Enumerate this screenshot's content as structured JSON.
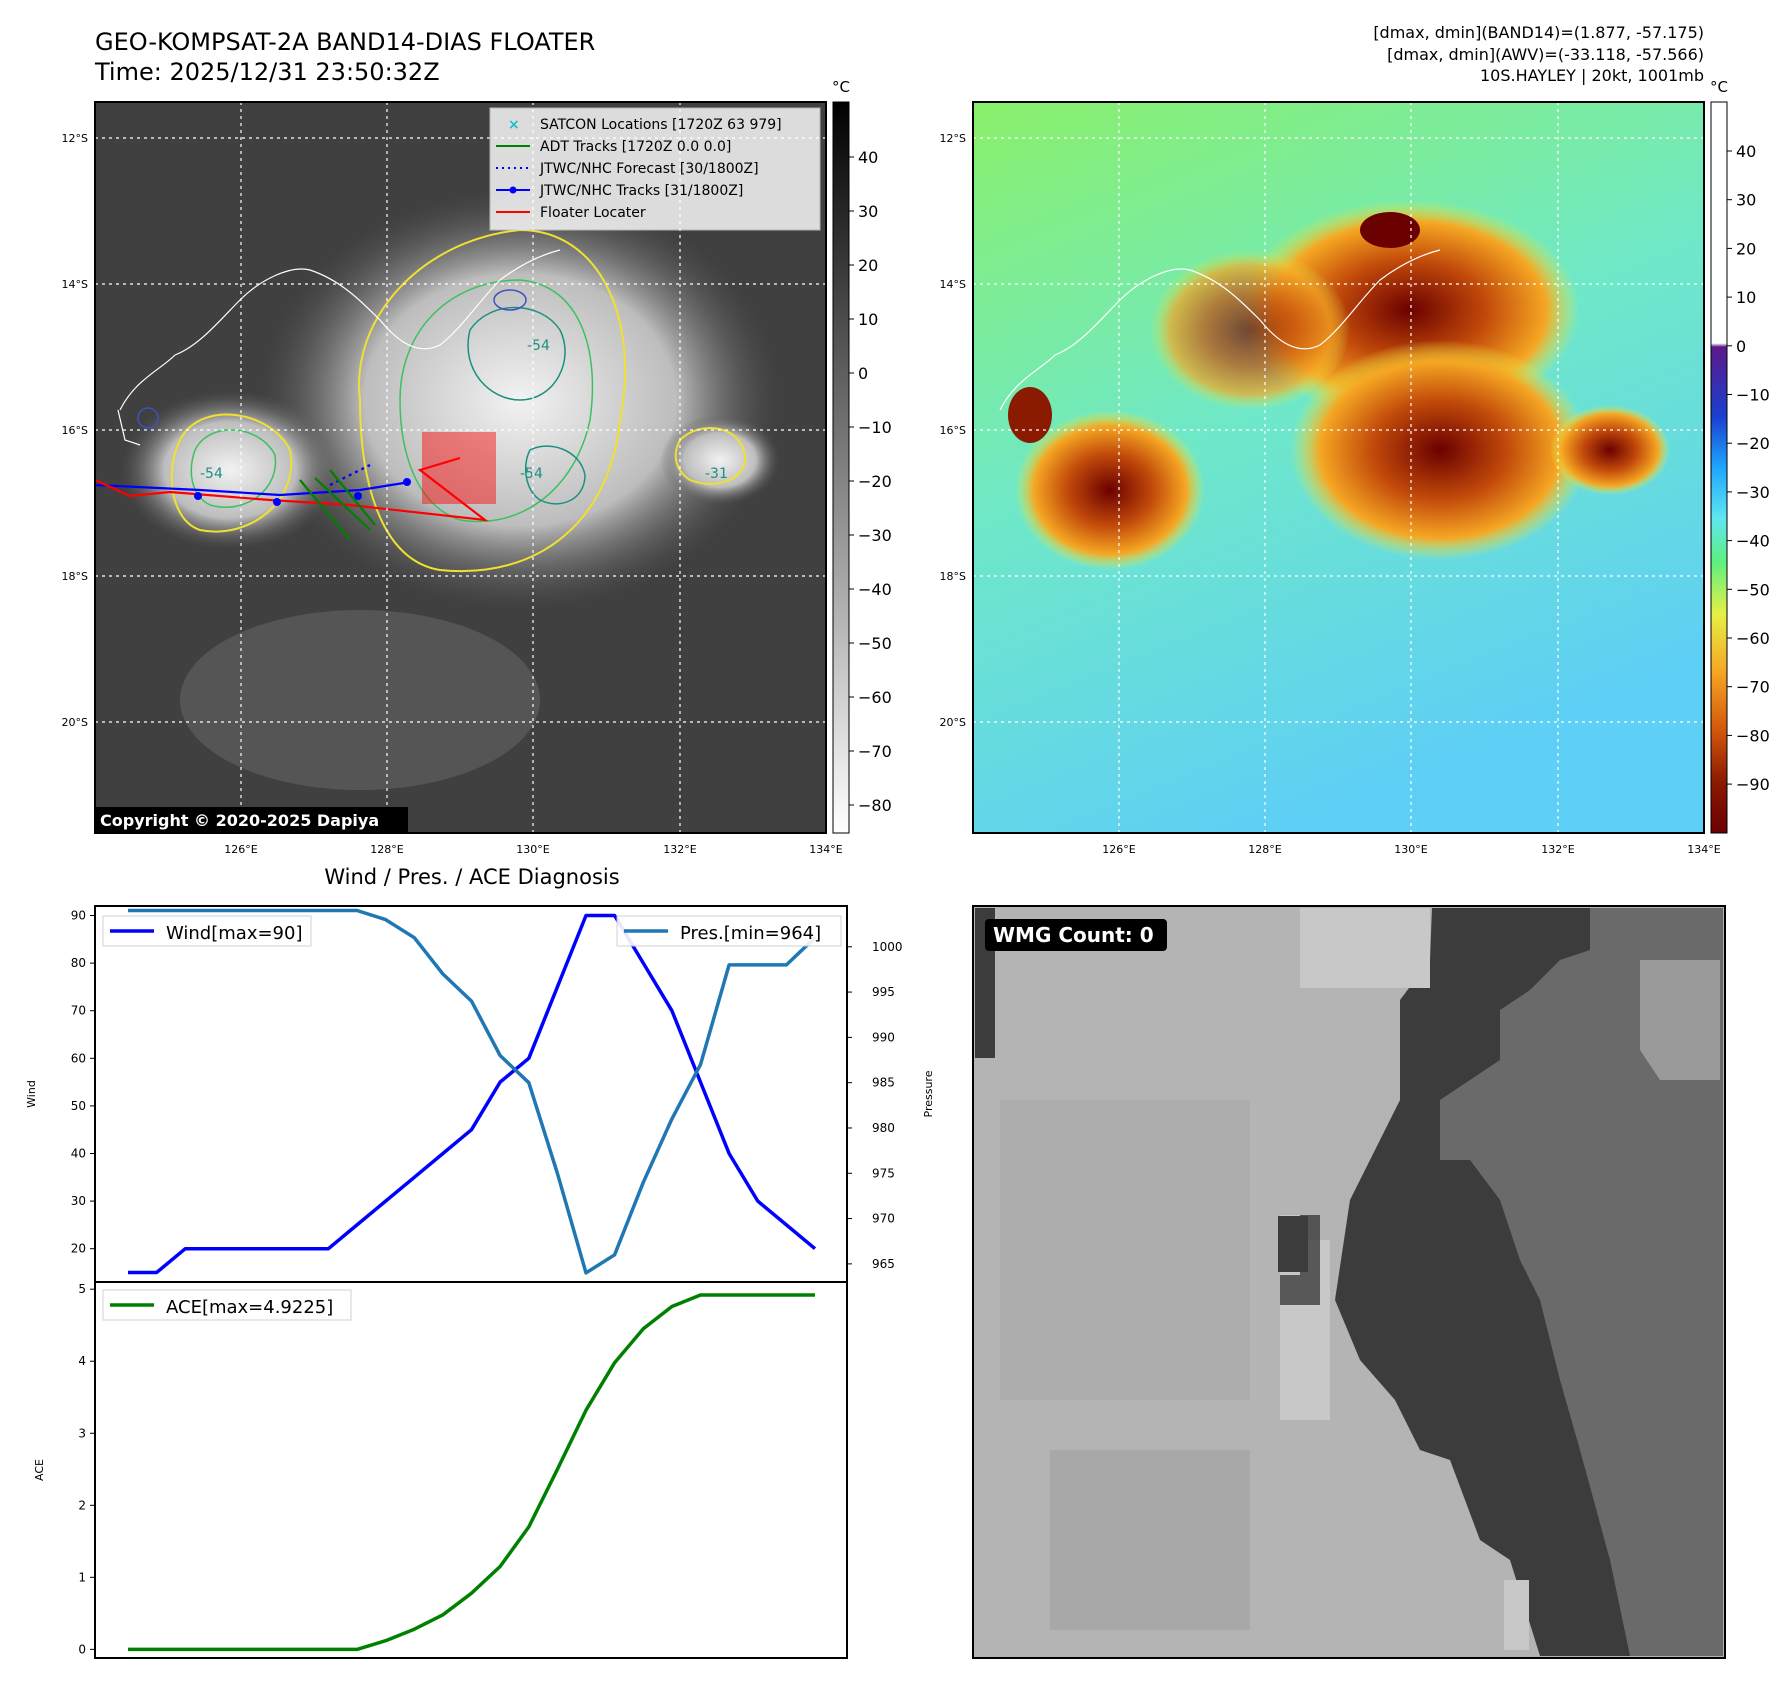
{
  "header": {
    "title_line1": "GEO-KOMPSAT-2A BAND14-DIAS FLOATER",
    "title_line2": "Time: 2025/12/31 23:50:32Z",
    "stats_line1": "[dmax, dmin](BAND14)=(1.877, -57.175)",
    "stats_line2": "[dmax, dmin](AWV)=(-33.118, -57.566)",
    "stats_line3": "10S.HAYLEY | 20kt, 1001mb"
  },
  "map_axes": {
    "lat_ticks": [
      "12°S",
      "14°S",
      "16°S",
      "18°S",
      "20°S"
    ],
    "lon_ticks": [
      "126°E",
      "128°E",
      "130°E",
      "132°E",
      "134°E"
    ]
  },
  "colorbar_ir": {
    "unit": "°C",
    "ticks": [
      "40",
      "30",
      "20",
      "10",
      "0",
      "−10",
      "−20",
      "−30",
      "−40",
      "−50",
      "−60",
      "−70",
      "−80"
    ]
  },
  "colorbar_color": {
    "unit": "°C",
    "ticks": [
      "40",
      "30",
      "20",
      "10",
      "0",
      "−10",
      "−20",
      "−30",
      "−40",
      "−50",
      "−60",
      "−70",
      "−80",
      "−90"
    ]
  },
  "legend": {
    "items": [
      {
        "label": "SATCON Locations [1720Z 63 979]",
        "color": "#17becf"
      },
      {
        "label": "ADT Tracks [1720Z 0.0 0.0]",
        "color": "#008000"
      },
      {
        "label": "JTWC/NHC Forecast [30/1800Z]",
        "color": "#0000ff"
      },
      {
        "label": "JTWC/NHC Tracks [31/1800Z]",
        "color": "#0000ff"
      },
      {
        "label": "Floater Locater",
        "color": "#ff0000"
      }
    ]
  },
  "contour_labels": [
    "-54",
    "-54",
    "-31",
    "-54"
  ],
  "copyright": "Copyright © 2020-2025 Dapiya",
  "wmg": {
    "label": "WMG Count: 0"
  },
  "chart_data": [
    {
      "type": "line",
      "title": "Wind / Pres. / ACE Diagnosis",
      "ylabel": "Wind",
      "ylabel_right": "Pressure",
      "x": [
        0,
        1,
        2,
        3,
        4,
        5,
        6,
        7,
        8,
        9,
        10,
        11,
        12,
        13,
        14,
        15,
        16,
        17,
        18,
        19,
        20,
        21,
        22,
        23,
        24
      ],
      "series": [
        {
          "name": "Wind[max=90]",
          "axis": "left",
          "color": "#0000ff",
          "values": [
            15,
            15,
            20,
            20,
            20,
            20,
            20,
            20,
            25,
            30,
            35,
            40,
            45,
            55,
            60,
            75,
            90,
            90,
            80,
            70,
            55,
            40,
            30,
            25,
            20
          ]
        },
        {
          "name": "Pres.[min=964]",
          "axis": "right",
          "color": "#1f77b4",
          "values": [
            1004,
            1004,
            1004,
            1004,
            1004,
            1004,
            1004,
            1004,
            1004,
            1003,
            1001,
            997,
            994,
            988,
            985,
            975,
            964,
            966,
            974,
            981,
            987,
            998,
            998,
            998,
            1001
          ]
        }
      ],
      "ylim": [
        13,
        92
      ],
      "yticks": [
        "20",
        "30",
        "40",
        "50",
        "60",
        "70",
        "80",
        "90"
      ],
      "ylim_right": [
        963,
        1004.5
      ],
      "yticks_right": [
        "965",
        "970",
        "975",
        "980",
        "985",
        "990",
        "995",
        "1000"
      ]
    },
    {
      "type": "line",
      "ylabel": "ACE",
      "x": [
        0,
        1,
        2,
        3,
        4,
        5,
        6,
        7,
        8,
        9,
        10,
        11,
        12,
        13,
        14,
        15,
        16,
        17,
        18,
        19,
        20,
        21,
        22,
        23,
        24
      ],
      "series": [
        {
          "name": "ACE[max=4.9225]",
          "color": "#008000",
          "values": [
            0,
            0,
            0,
            0,
            0,
            0,
            0,
            0,
            0,
            0.12,
            0.28,
            0.48,
            0.78,
            1.15,
            1.7,
            2.5,
            3.32,
            3.98,
            4.45,
            4.76,
            4.92,
            4.92,
            4.92,
            4.92,
            4.92
          ]
        }
      ],
      "ylim": [
        -0.12,
        5.1
      ],
      "yticks": [
        "0",
        "1",
        "2",
        "3",
        "4",
        "5"
      ]
    }
  ]
}
